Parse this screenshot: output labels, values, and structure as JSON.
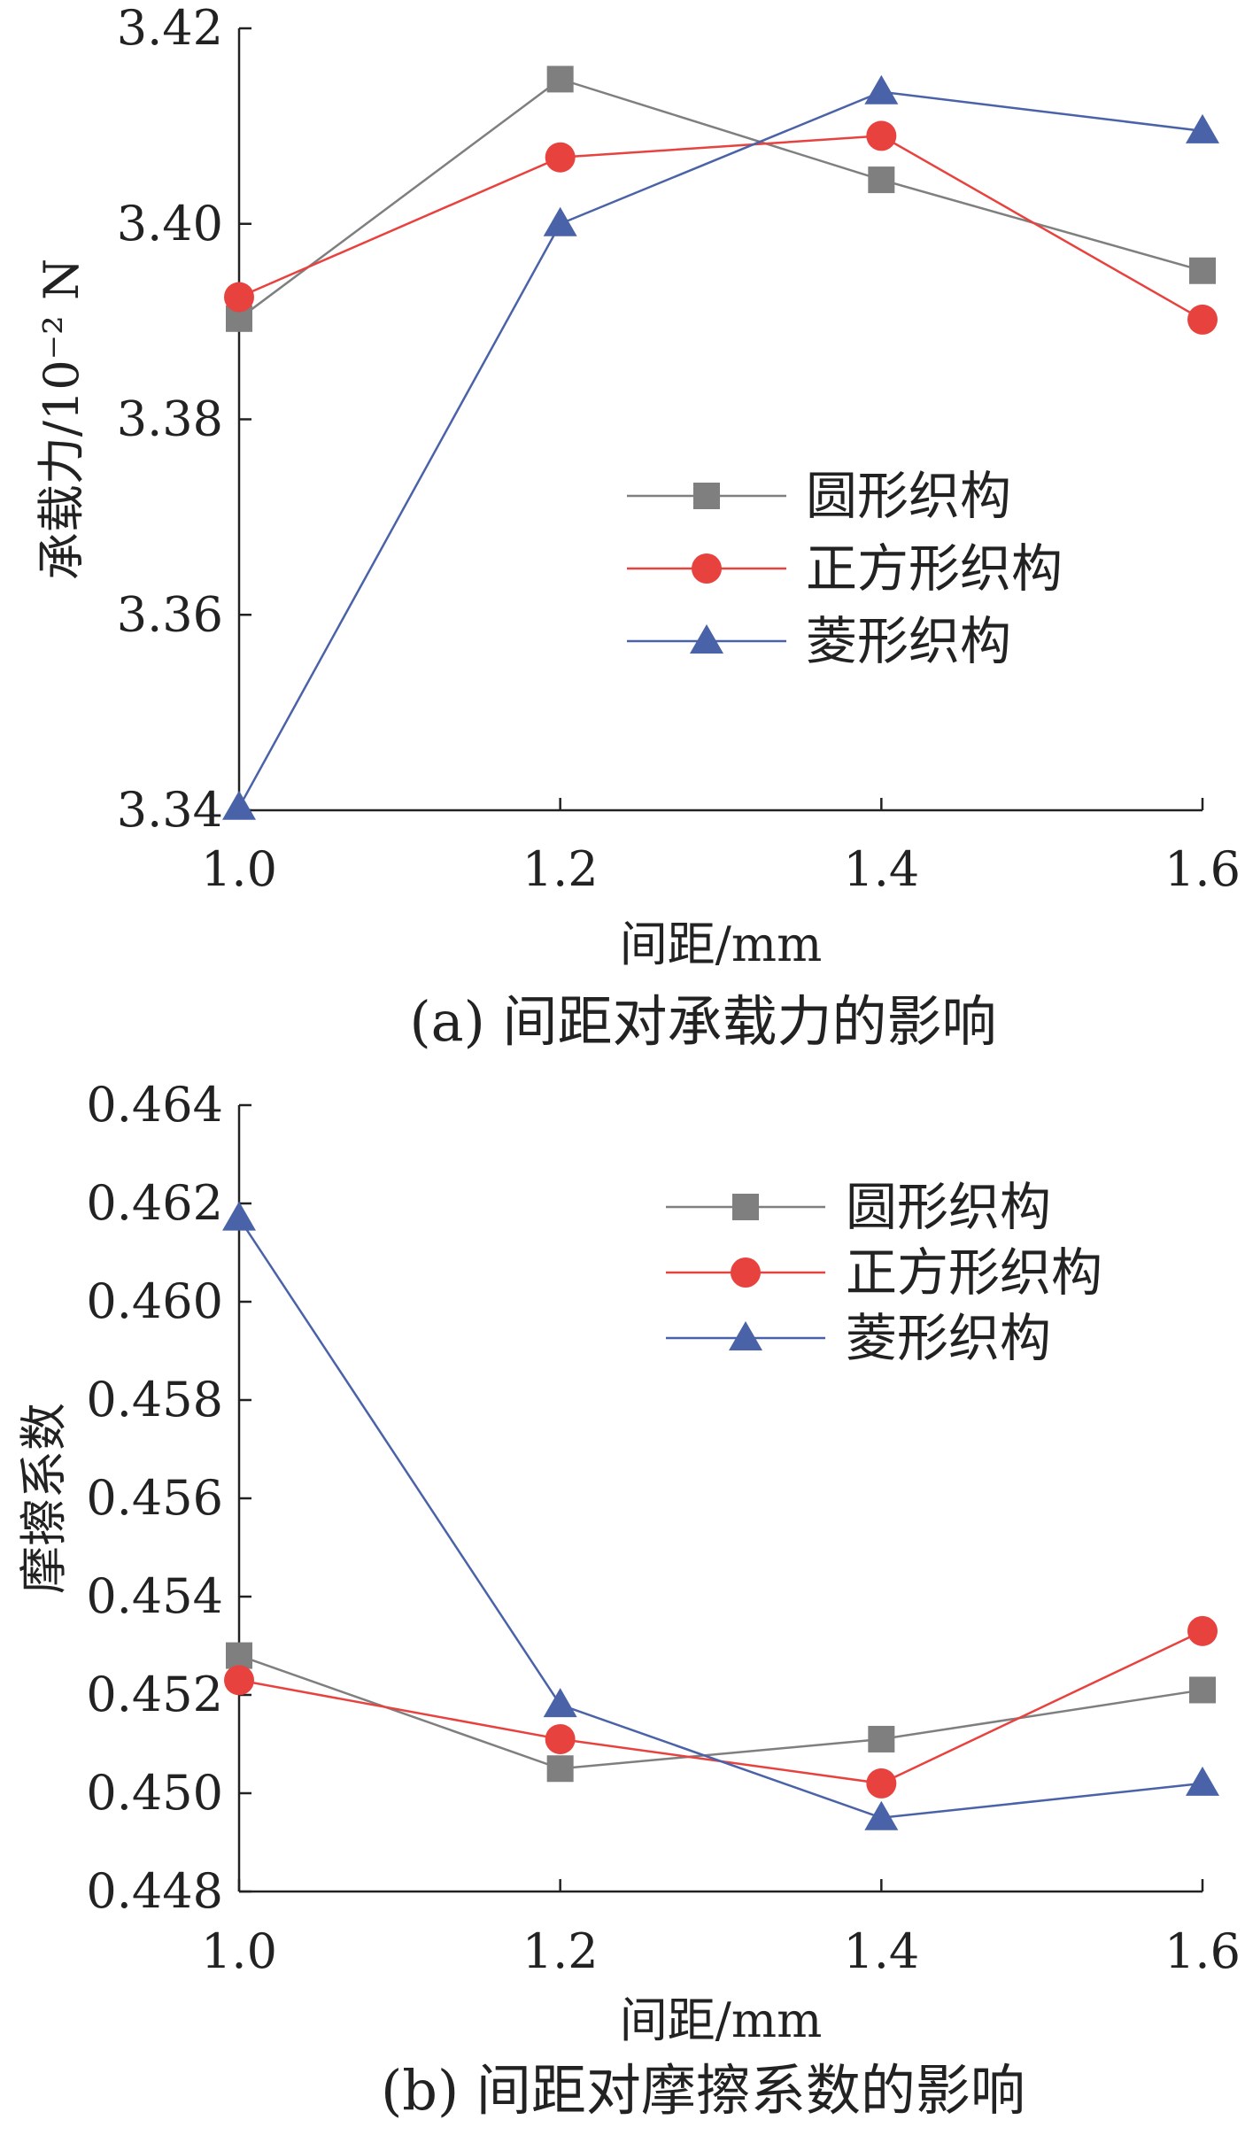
{
  "chart_data": [
    {
      "type": "line",
      "caption": "(a)  间距对承载力的影响",
      "xlabel": "间距/mm",
      "ylabel": "承载力/10⁻² N",
      "x": [
        1.0,
        1.2,
        1.4,
        1.6
      ],
      "x_ticks": [
        "1.0",
        "1.2",
        "1.4",
        "1.6"
      ],
      "xlim": [
        1.0,
        1.6
      ],
      "ylim": [
        3.34,
        3.42
      ],
      "y_ticks": [
        "3.34",
        "3.36",
        "3.38",
        "3.40",
        "3.42"
      ],
      "grid": false,
      "legend_position": "center-right",
      "series": [
        {
          "name": "圆形织构",
          "values": [
            3.3903,
            3.4148,
            3.4045,
            3.3952
          ],
          "color": "#7f7f7f",
          "marker": "square"
        },
        {
          "name": "正方形织构",
          "values": [
            3.3925,
            3.4068,
            3.409,
            3.3902
          ],
          "color": "#e8423f",
          "marker": "circle"
        },
        {
          "name": "菱形织构",
          "values": [
            3.3403,
            3.4,
            3.4135,
            3.4095
          ],
          "color": "#4a62a8",
          "marker": "triangle"
        }
      ]
    },
    {
      "type": "line",
      "caption": "(b)  间距对摩擦系数的影响",
      "xlabel": "间距/mm",
      "ylabel": "摩擦系数",
      "x": [
        1.0,
        1.2,
        1.4,
        1.6
      ],
      "x_ticks": [
        "1.0",
        "1.2",
        "1.4",
        "1.6"
      ],
      "xlim": [
        1.0,
        1.6
      ],
      "ylim": [
        0.448,
        0.464
      ],
      "y_ticks": [
        "0.448",
        "0.450",
        "0.452",
        "0.454",
        "0.456",
        "0.458",
        "0.460",
        "0.462",
        "0.464"
      ],
      "grid": false,
      "legend_position": "top-right",
      "series": [
        {
          "name": "圆形织构",
          "values": [
            0.4528,
            0.4505,
            0.4511,
            0.4521
          ],
          "color": "#7f7f7f",
          "marker": "square"
        },
        {
          "name": "正方形织构",
          "values": [
            0.4523,
            0.4511,
            0.4502,
            0.4533
          ],
          "color": "#e8423f",
          "marker": "circle"
        },
        {
          "name": "菱形织构",
          "values": [
            0.4617,
            0.4518,
            0.4495,
            0.4502
          ],
          "color": "#4a62a8",
          "marker": "triangle"
        }
      ]
    }
  ]
}
